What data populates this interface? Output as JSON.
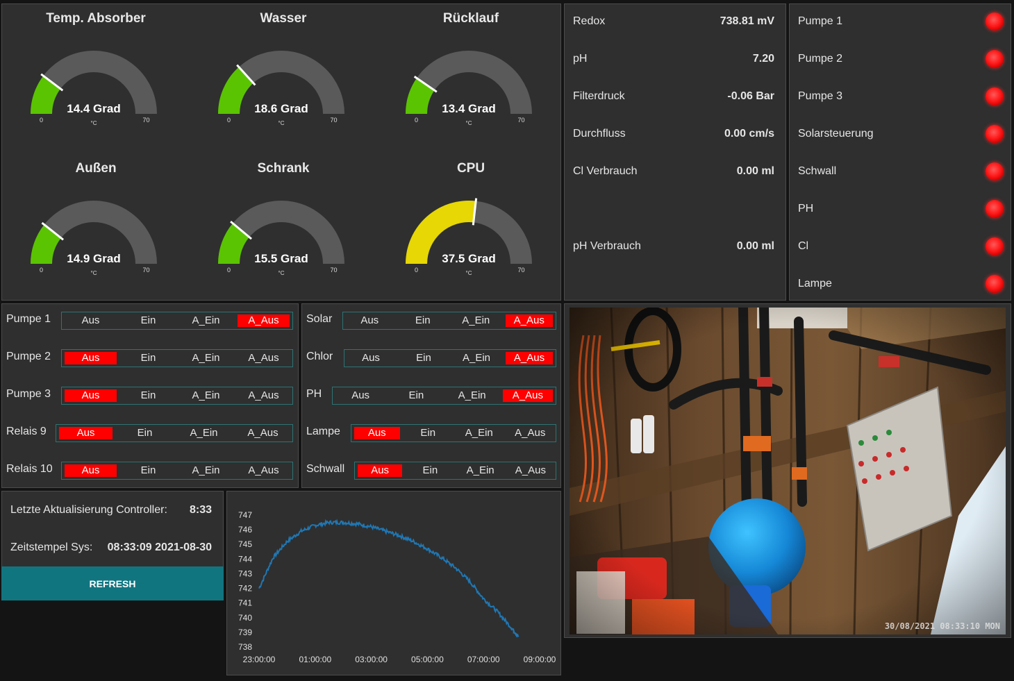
{
  "gauges": [
    {
      "title": "Temp. Absorber",
      "value": 14.4,
      "display": "14.4 Grad",
      "unit": "°C",
      "min_label": "0",
      "max_label": "70",
      "min": 0,
      "max": 70,
      "color": "#5bc402"
    },
    {
      "title": "Wasser",
      "value": 18.6,
      "display": "18.6 Grad",
      "unit": "°C",
      "min_label": "0",
      "max_label": "70",
      "min": 0,
      "max": 70,
      "color": "#5bc402"
    },
    {
      "title": "Rücklauf",
      "value": 13.4,
      "display": "13.4 Grad",
      "unit": "°C",
      "min_label": "0",
      "max_label": "70",
      "min": 0,
      "max": 70,
      "color": "#5bc402"
    },
    {
      "title": "Außen",
      "value": 14.9,
      "display": "14.9 Grad",
      "unit": "°C",
      "min_label": "0",
      "max_label": "70",
      "min": 0,
      "max": 70,
      "color": "#5bc402"
    },
    {
      "title": "Schrank",
      "value": 15.5,
      "display": "15.5 Grad",
      "unit": "°C",
      "min_label": "0",
      "max_label": "70",
      "min": 0,
      "max": 70,
      "color": "#5bc402"
    },
    {
      "title": "CPU",
      "value": 37.5,
      "display": "37.5 Grad",
      "unit": "°C",
      "min_label": "0",
      "max_label": "70",
      "min": 0,
      "max": 70,
      "color": "#e6d705"
    }
  ],
  "sensors": [
    {
      "label": "Redox",
      "value": "738.81 mV"
    },
    {
      "label": "pH",
      "value": "7.20"
    },
    {
      "label": "Filterdruck",
      "value": "-0.06 Bar"
    },
    {
      "label": "Durchfluss",
      "value": "0.00 cm/s"
    },
    {
      "label": "Cl Verbrauch",
      "value": "0.00 ml"
    },
    {
      "label": "pH Verbrauch",
      "value": "0.00 ml"
    }
  ],
  "status": [
    {
      "label": "Pumpe 1"
    },
    {
      "label": "Pumpe 2"
    },
    {
      "label": "Pumpe 3"
    },
    {
      "label": "Solarsteuerung"
    },
    {
      "label": "Schwall"
    },
    {
      "label": "PH"
    },
    {
      "label": "Cl"
    },
    {
      "label": "Lampe"
    }
  ],
  "switch_options": [
    "Aus",
    "Ein",
    "A_Ein",
    "A_Aus"
  ],
  "switches_left": [
    {
      "label": "Pumpe 1",
      "active": "A_Aus"
    },
    {
      "label": "Pumpe 2",
      "active": "Aus"
    },
    {
      "label": "Pumpe 3",
      "active": "Aus"
    },
    {
      "label": "Relais 9",
      "active": "Aus"
    },
    {
      "label": "Relais 10",
      "active": "Aus"
    }
  ],
  "switches_right": [
    {
      "label": "Solar",
      "active": "A_Aus"
    },
    {
      "label": "Chlor",
      "active": "A_Aus"
    },
    {
      "label": "PH",
      "active": "A_Aus"
    },
    {
      "label": "Lampe",
      "active": "Aus"
    },
    {
      "label": "Schwall",
      "active": "Aus"
    }
  ],
  "info": {
    "controller_label": "Letzte Aktualisierung Controller:",
    "controller_value": "8:33",
    "sys_label": "Zeitstempel Sys:",
    "sys_value": "08:33:09 2021-08-30",
    "refresh_label": "REFRESH"
  },
  "chart_data": {
    "type": "line",
    "x_tick_labels": [
      "23:00:00",
      "01:00:00",
      "03:00:00",
      "05:00:00",
      "07:00:00",
      "09:00:00"
    ],
    "y_tick_labels": [
      "747",
      "746",
      "745",
      "744",
      "743",
      "742",
      "741",
      "740",
      "739",
      "738"
    ],
    "ylim": [
      738,
      747
    ],
    "series": [
      {
        "color": "#1f77b4",
        "x_hours": [
          0,
          0.5,
          1,
          1.5,
          2,
          2.5,
          3,
          3.5,
          4,
          4.5,
          5,
          5.5,
          6,
          6.5,
          7,
          7.5,
          8,
          8.5,
          9,
          9.25
        ],
        "values": [
          742.0,
          744.1,
          745.2,
          745.9,
          746.3,
          746.5,
          746.5,
          746.4,
          746.2,
          745.9,
          745.6,
          745.2,
          744.7,
          744.1,
          743.4,
          742.5,
          741.3,
          740.4,
          739.3,
          738.7
        ]
      }
    ]
  },
  "camera": {
    "timestamp": "30/08/2021 08:33:10 MON"
  }
}
